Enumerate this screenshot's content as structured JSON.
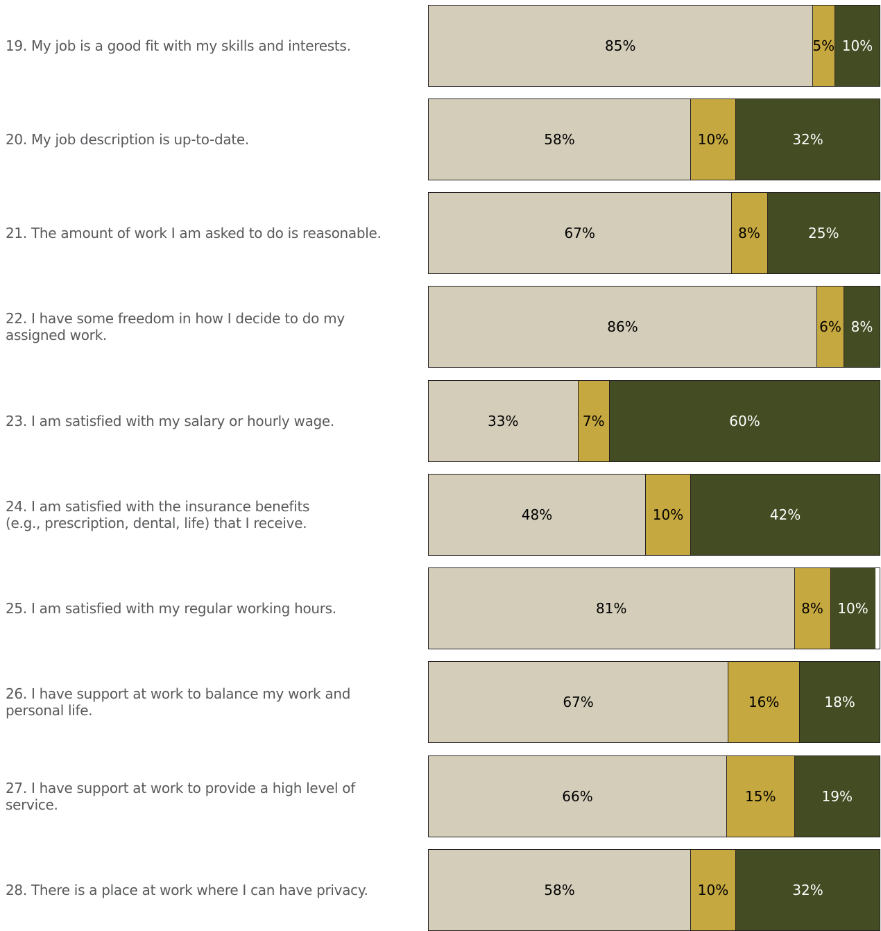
{
  "chart_data": {
    "type": "bar",
    "orientation": "horizontal-stacked-100",
    "categories": [
      "19. My job is a good fit with my skills and interests.",
      "20. My job description is up-to-date.",
      "21. The amount of work I am asked to do is reasonable.",
      "22. I have some freedom in how I decide to do my\nassigned work.",
      "23. I am satisfied with my salary or hourly wage.",
      "24. I am satisfied with the insurance benefits\n(e.g., prescription, dental, life) that I receive.",
      "25. I am satisfied with my regular working hours.",
      "26. I have support at work to balance my work and\npersonal life.",
      "27. I have support at work to provide a high level of\nservice.",
      "28. There is a place at work where I can have privacy."
    ],
    "series": [
      {
        "color": "#d3cdb9",
        "text_color": "#000000",
        "values": [
          85,
          58,
          67,
          86,
          33,
          48,
          81,
          67,
          66,
          58
        ]
      },
      {
        "color": "#c5a83f",
        "text_color": "#000000",
        "values": [
          5,
          10,
          8,
          6,
          7,
          10,
          8,
          16,
          15,
          10
        ]
      },
      {
        "color": "#434c22",
        "text_color": "#ffffff",
        "values": [
          10,
          32,
          25,
          8,
          60,
          42,
          10,
          18,
          19,
          32
        ]
      }
    ],
    "value_suffix": "%",
    "xlim": [
      0,
      100
    ]
  }
}
